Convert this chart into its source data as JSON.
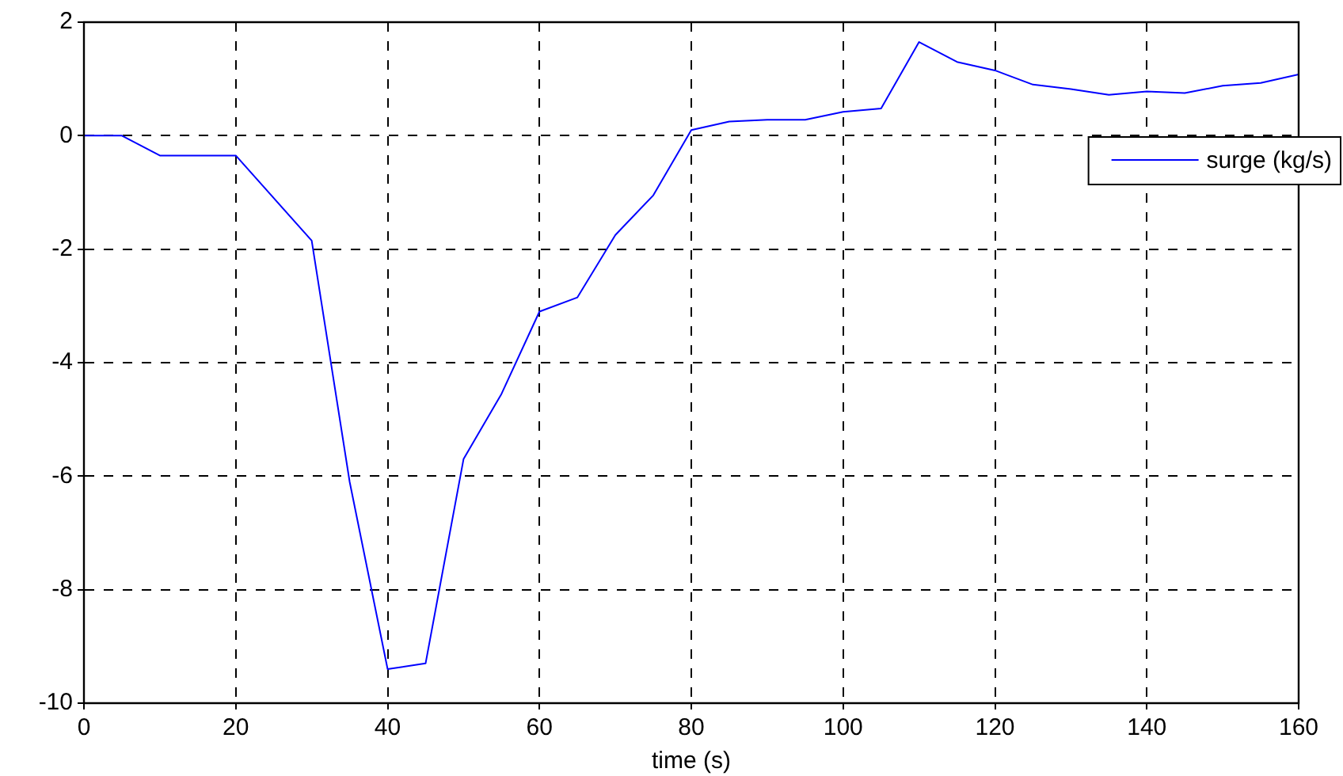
{
  "chart_data": {
    "type": "line",
    "xlabel": "time (s)",
    "x": [
      0,
      5,
      10,
      15,
      20,
      25,
      30,
      35,
      40,
      45,
      50,
      55,
      60,
      65,
      70,
      75,
      80,
      85,
      90,
      95,
      100,
      105,
      110,
      115,
      120,
      125,
      130,
      135,
      140,
      145,
      150,
      155,
      160
    ],
    "series": [
      {
        "name": "surge (kg/s)",
        "color": "#0000ff",
        "values": [
          0,
          0,
          -0.35,
          -0.35,
          -0.35,
          -1.1,
          -1.85,
          -6.1,
          -9.4,
          -9.3,
          -5.7,
          -4.55,
          -3.1,
          -2.85,
          -1.75,
          -1.05,
          0.1,
          0.25,
          0.28,
          0.28,
          0.42,
          0.48,
          1.65,
          1.3,
          1.15,
          0.9,
          0.82,
          0.72,
          0.78,
          0.75,
          0.88,
          0.93,
          1.08
        ]
      }
    ],
    "xlim": [
      0,
      160
    ],
    "xticks": [
      0,
      20,
      40,
      60,
      80,
      100,
      120,
      140,
      160
    ],
    "ylim": [
      -10,
      2
    ],
    "yticks": [
      -10,
      -8,
      -6,
      -4,
      -2,
      0,
      2
    ],
    "grid": true,
    "legend": "top right",
    "marker": "none",
    "line_style": "solid"
  }
}
